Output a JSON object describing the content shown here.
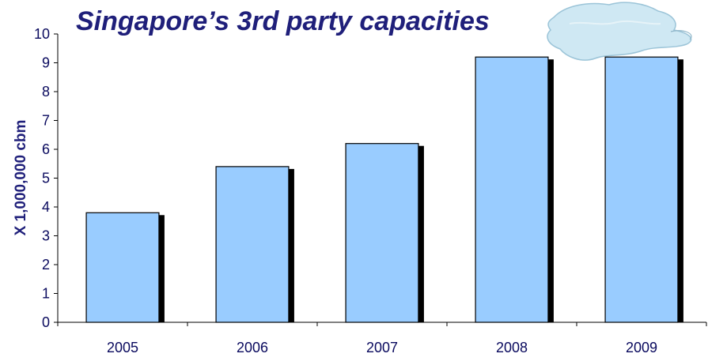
{
  "chart_data": {
    "type": "bar",
    "title": "Singapore’s 3rd party capacities",
    "xlabel": "",
    "ylabel": "X 1,000,000 cbm",
    "categories": [
      "2005",
      "2006",
      "2007",
      "2008",
      "2009"
    ],
    "values": [
      3.8,
      5.4,
      6.2,
      9.2,
      9.2
    ],
    "ylim": [
      0,
      10
    ],
    "yticks": [
      "0",
      "1",
      "2",
      "3",
      "4",
      "5",
      "6",
      "7",
      "8",
      "9",
      "10"
    ],
    "grid": false,
    "legend": "none",
    "colors": {
      "bar_fill": "#99ccff",
      "bar_stroke": "#000000",
      "bar_shadow": "#000000",
      "axis": "#000000",
      "text": "#0a0a5e",
      "title": "#1f1f7a"
    },
    "decoration": "island-map-icon"
  }
}
